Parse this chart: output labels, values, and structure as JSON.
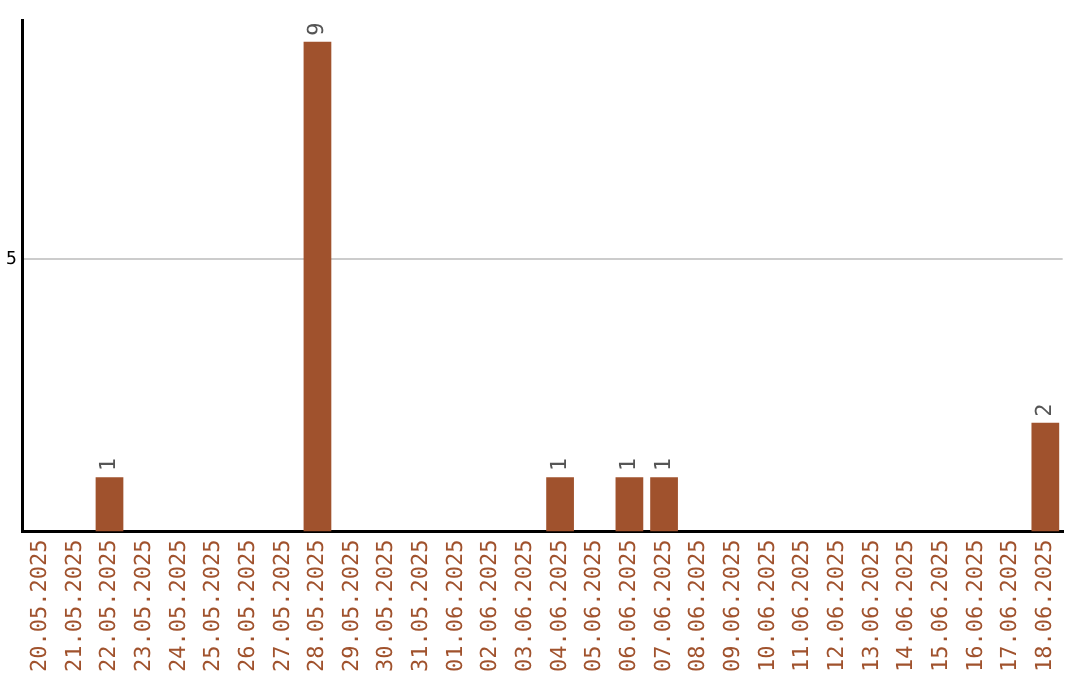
{
  "chart_data": {
    "type": "bar",
    "categories": [
      "20.05.2025",
      "21.05.2025",
      "22.05.2025",
      "23.05.2025",
      "24.05.2025",
      "25.05.2025",
      "26.05.2025",
      "27.05.2025",
      "28.05.2025",
      "29.05.2025",
      "30.05.2025",
      "31.05.2025",
      "01.06.2025",
      "02.06.2025",
      "03.06.2025",
      "04.06.2025",
      "05.06.2025",
      "06.06.2025",
      "07.06.2025",
      "08.06.2025",
      "09.06.2025",
      "10.06.2025",
      "11.06.2025",
      "12.06.2025",
      "13.06.2025",
      "14.06.2025",
      "15.06.2025",
      "16.06.2025",
      "17.06.2025",
      "18.06.2025"
    ],
    "values": [
      null,
      null,
      1,
      null,
      null,
      null,
      null,
      null,
      9,
      null,
      null,
      null,
      null,
      null,
      null,
      1,
      null,
      1,
      1,
      null,
      null,
      null,
      null,
      null,
      null,
      null,
      null,
      null,
      null,
      2
    ],
    "color": "#a0522d",
    "ylim": [
      0,
      9.4
    ],
    "yticks": [
      5
    ],
    "grid": "y",
    "legend": false,
    "data_labels": true
  }
}
